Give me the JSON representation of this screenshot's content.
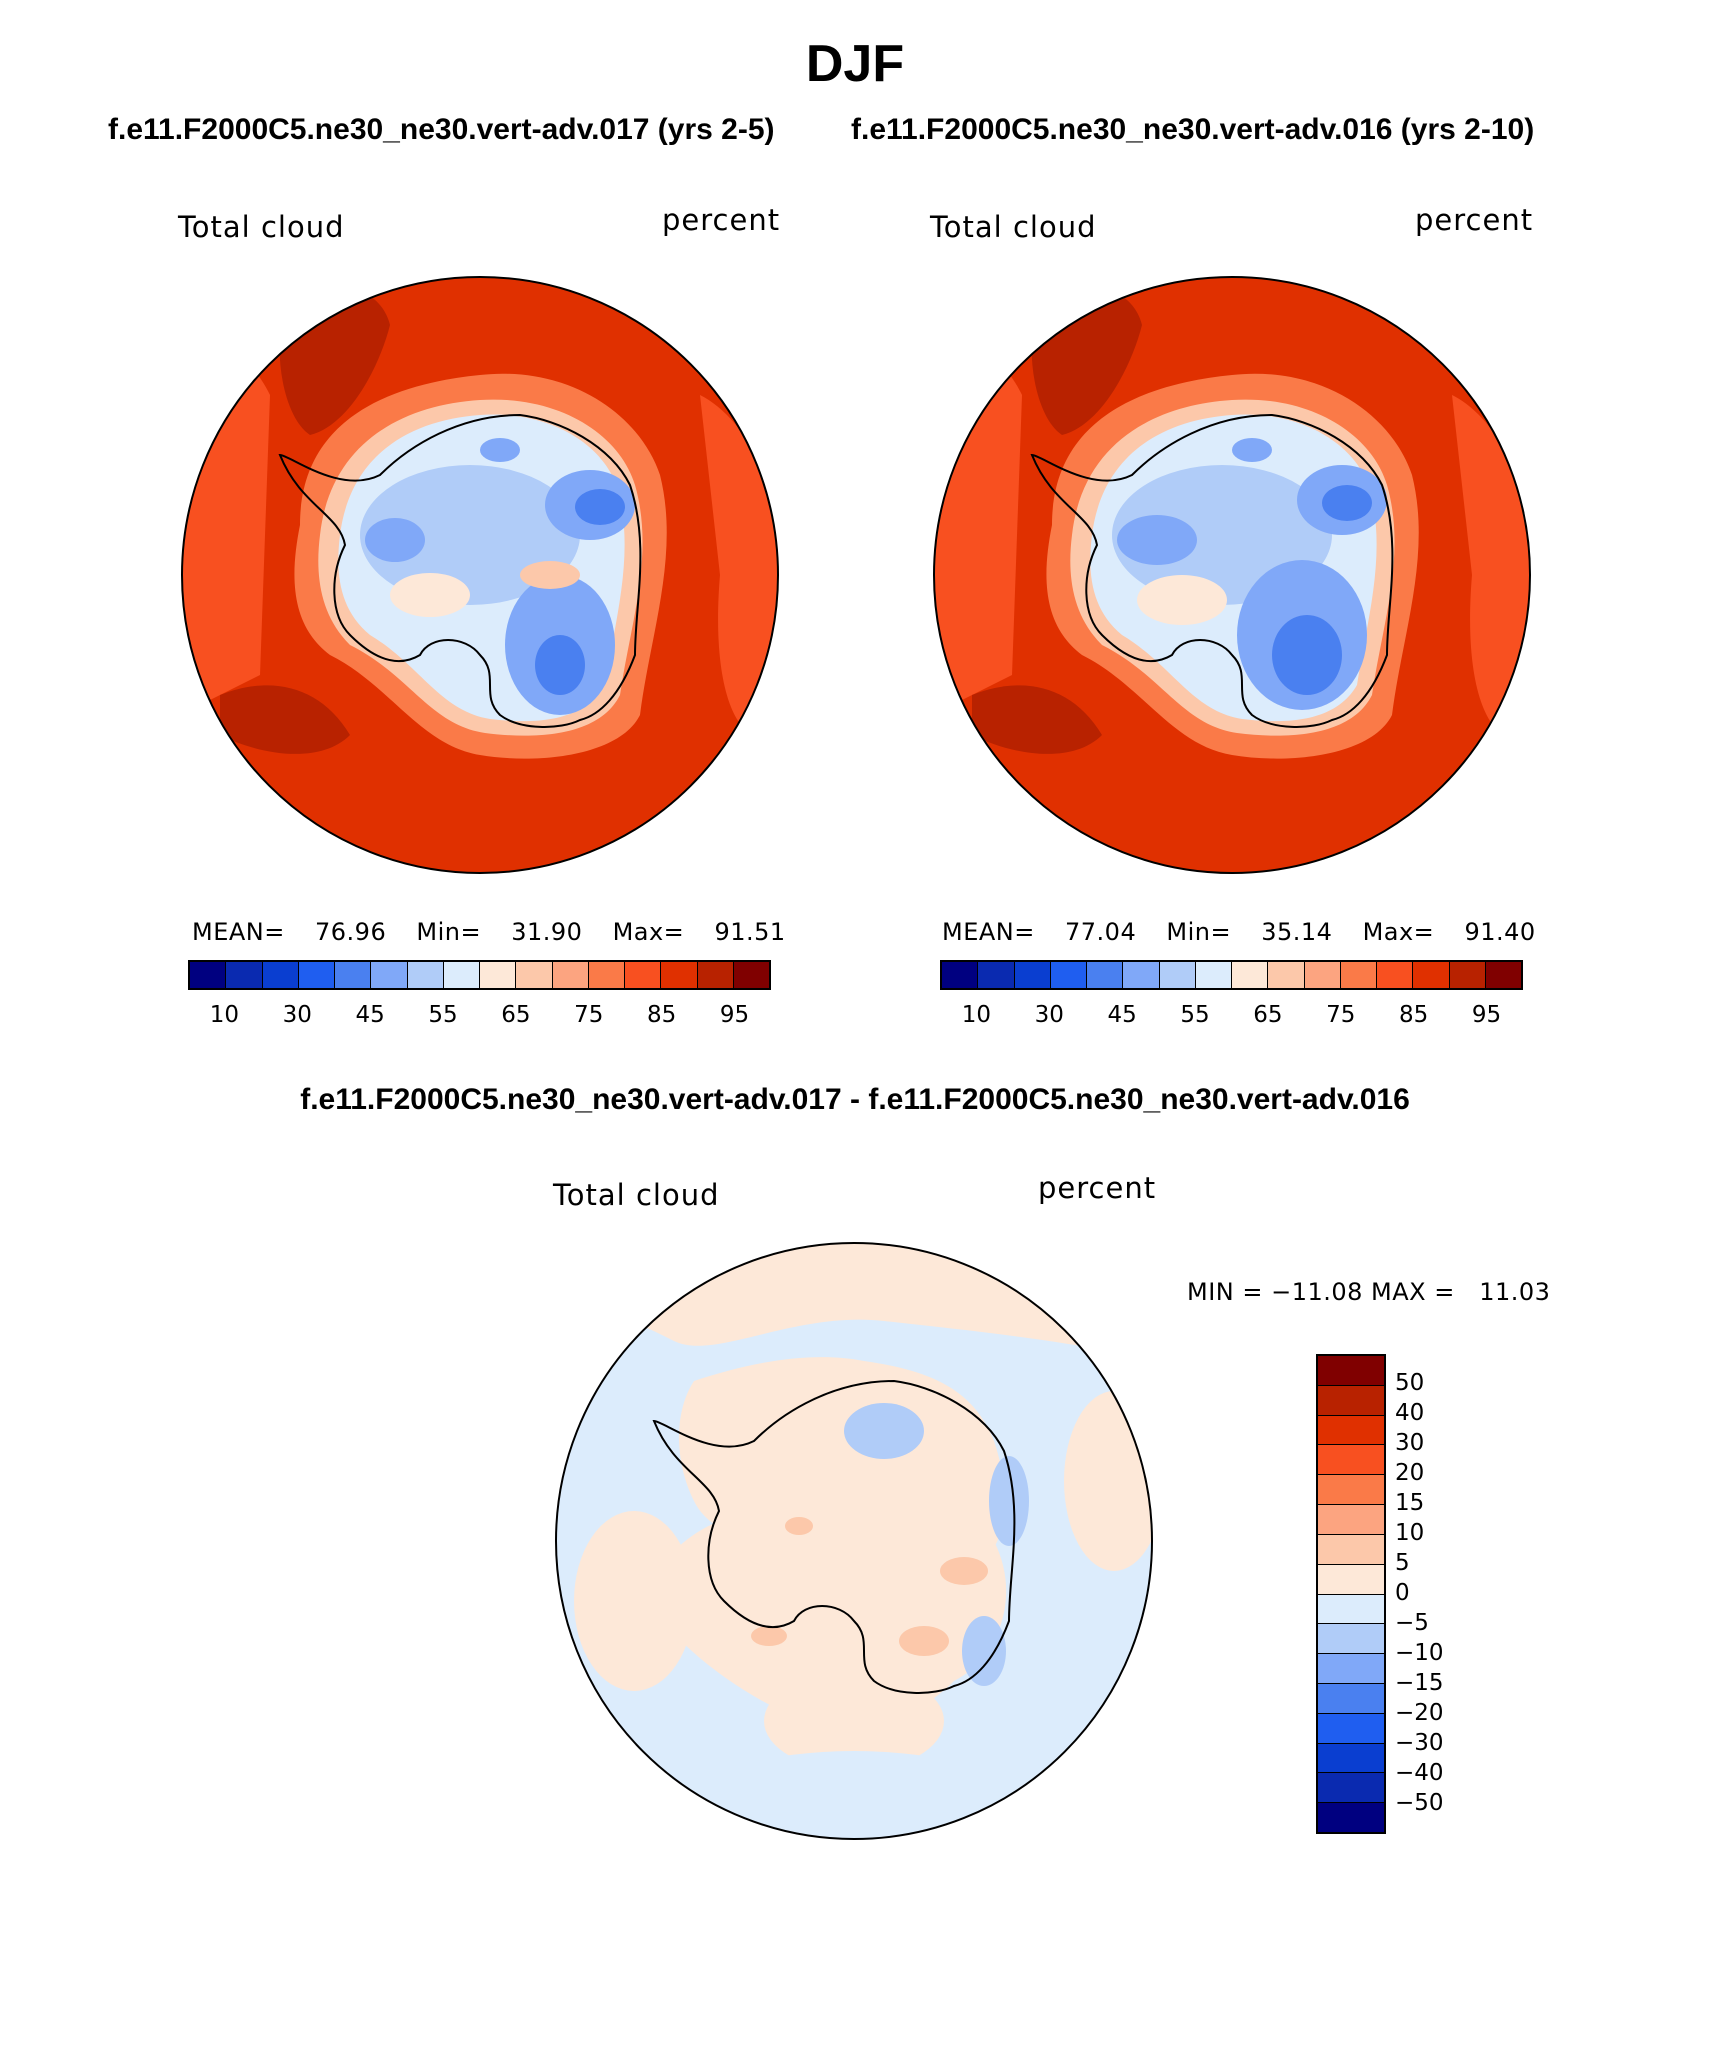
{
  "season": "DJF",
  "subtitle_left": "f.e11.F2000C5.ne30_ne30.vert-adv.017 (yrs 2-5)",
  "subtitle_right": "f.e11.F2000C5.ne30_ne30.vert-adv.016 (yrs 2-10)",
  "diff_title": "f.e11.F2000C5.ne30_ne30.vert-adv.017 - f.e11.F2000C5.ne30_ne30.vert-adv.016",
  "panels": [
    {
      "variable": "Total cloud",
      "units": "percent",
      "stats": {
        "mean_label": "MEAN=",
        "mean": "76.96",
        "min_label": "Min=",
        "min": "31.90",
        "max_label": "Max=",
        "max": "91.51"
      }
    },
    {
      "variable": "Total cloud",
      "units": "percent",
      "stats": {
        "mean_label": "MEAN=",
        "mean": "77.04",
        "min_label": "Min=",
        "min": "35.14",
        "max_label": "Max=",
        "max": "91.40"
      }
    }
  ],
  "diff_panel": {
    "variable": "Total cloud",
    "units": "percent",
    "minmax_text": "MIN = −11.08 MAX =   11.03"
  },
  "colorbar_main": {
    "colors": [
      "#000080",
      "#0a2ab0",
      "#0a3ed0",
      "#1f5ef0",
      "#4a80f0",
      "#80a8f8",
      "#b0ccf8",
      "#dcecfc",
      "#fde8d8",
      "#fcc8aa",
      "#fca480",
      "#fa7a48",
      "#f85020",
      "#e03000",
      "#b82200",
      "#800000"
    ],
    "tick_labels": [
      "10",
      "30",
      "45",
      "55",
      "65",
      "75",
      "85",
      "95"
    ]
  },
  "colorbar_diff": {
    "colors": [
      "#800000",
      "#b82200",
      "#e03000",
      "#f85020",
      "#fa7a48",
      "#fca480",
      "#fcc8aa",
      "#fde8d8",
      "#dcecfc",
      "#b0ccf8",
      "#80a8f8",
      "#4a80f0",
      "#1f5ef0",
      "#0a3ed0",
      "#0a2ab0",
      "#000080"
    ],
    "tick_labels": [
      "50",
      "40",
      "30",
      "20",
      "15",
      "10",
      "5",
      "0",
      "−5",
      "−10",
      "−15",
      "−20",
      "−30",
      "−40",
      "−50"
    ]
  }
}
